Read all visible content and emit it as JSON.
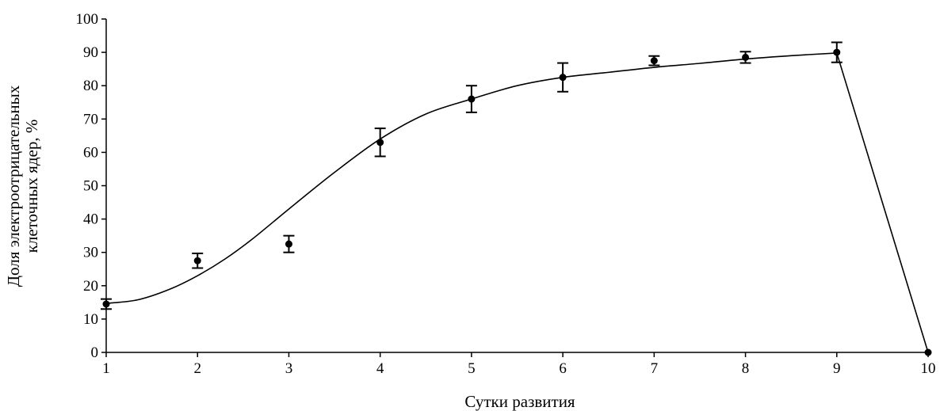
{
  "chart_data": {
    "type": "line",
    "title": "",
    "xlabel": "Сутки развития",
    "ylabel_lines": [
      "Доля электроотрицательных",
      "клеточных ядер, %"
    ],
    "xlim": [
      1,
      10
    ],
    "ylim": [
      0,
      100
    ],
    "x_ticks": [
      "1",
      "2",
      "3",
      "4",
      "5",
      "6",
      "7",
      "8",
      "9",
      "10"
    ],
    "y_ticks": [
      "0",
      "10",
      "20",
      "30",
      "40",
      "50",
      "60",
      "70",
      "80",
      "90",
      "100"
    ],
    "grid": false,
    "legend": "none",
    "series": [
      {
        "marker": "circle",
        "x": [
          1,
          2,
          3,
          4,
          5,
          6,
          7,
          8,
          9,
          10
        ],
        "y": [
          14.5,
          27.5,
          32.5,
          63,
          76,
          82.5,
          87.5,
          88.5,
          90,
          0
        ],
        "error": [
          1.5,
          2.2,
          2.5,
          4.2,
          4,
          4.3,
          1.4,
          1.7,
          3,
          0
        ]
      }
    ],
    "fit_line": {
      "x": [
        1,
        1.35,
        1.7,
        2,
        2.3,
        2.6,
        3,
        3.5,
        4,
        4.5,
        5,
        5.5,
        6,
        6.5,
        7,
        7.5,
        8,
        8.5,
        9,
        10
      ],
      "y": [
        14.7,
        15.8,
        19,
        23,
        28,
        34,
        43,
        54,
        64,
        71.5,
        76,
        80,
        82.5,
        84,
        85.5,
        86.7,
        88,
        89,
        89.8,
        0
      ]
    }
  }
}
